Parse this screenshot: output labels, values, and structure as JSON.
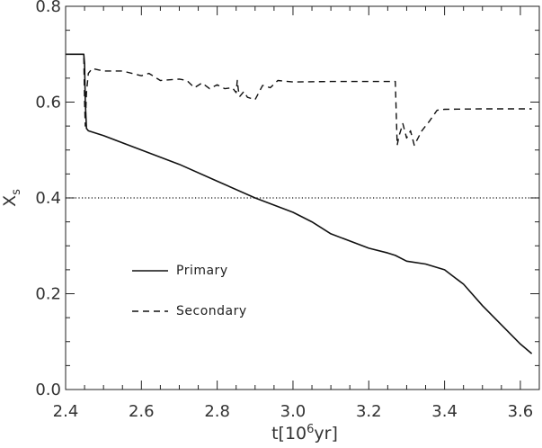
{
  "chart_data": {
    "type": "line",
    "xlabel_prefix": "t[10",
    "xlabel_sup": "6",
    "xlabel_suffix": "yr]",
    "ylabel_main": "X",
    "ylabel_sub": "s",
    "xlim": [
      2.4,
      3.65
    ],
    "ylim": [
      0.0,
      0.8
    ],
    "xticks": [
      2.4,
      2.6,
      2.8,
      3.0,
      3.2,
      3.4,
      3.6
    ],
    "xtick_labels": [
      "2.4",
      "2.6",
      "2.8",
      "3.0",
      "3.2",
      "3.4",
      "3.6"
    ],
    "yticks": [
      0.0,
      0.2,
      0.4,
      0.6,
      0.8
    ],
    "ytick_labels": [
      "0.0",
      "0.2",
      "0.4",
      "0.6",
      "0.8"
    ],
    "grid": false,
    "legend_position": "lower-left",
    "reference_line": {
      "y": 0.4,
      "style": "dotted"
    },
    "series": [
      {
        "name": "Primary",
        "style": "solid",
        "x": [
          2.4,
          2.44,
          2.448,
          2.45,
          2.452,
          2.455,
          2.46,
          2.5,
          2.6,
          2.7,
          2.8,
          2.9,
          3.0,
          3.05,
          3.1,
          3.2,
          3.25,
          3.27,
          3.3,
          3.35,
          3.4,
          3.45,
          3.5,
          3.55,
          3.6,
          3.63
        ],
        "y": [
          0.7,
          0.7,
          0.7,
          0.68,
          0.6,
          0.545,
          0.54,
          0.53,
          0.5,
          0.47,
          0.435,
          0.4,
          0.37,
          0.35,
          0.325,
          0.295,
          0.285,
          0.28,
          0.268,
          0.262,
          0.25,
          0.22,
          0.175,
          0.135,
          0.095,
          0.075
        ]
      },
      {
        "name": "Secondary",
        "style": "dashed",
        "x": [
          2.4,
          2.44,
          2.448,
          2.45,
          2.452,
          2.455,
          2.46,
          2.47,
          2.5,
          2.55,
          2.6,
          2.62,
          2.65,
          2.7,
          2.72,
          2.74,
          2.76,
          2.78,
          2.8,
          2.82,
          2.84,
          2.85,
          2.853,
          2.856,
          2.86,
          2.87,
          2.88,
          2.9,
          2.92,
          2.94,
          2.96,
          3.0,
          3.1,
          3.2,
          3.27,
          3.275,
          3.28,
          3.29,
          3.3,
          3.31,
          3.32,
          3.33,
          3.34,
          3.36,
          3.38,
          3.4,
          3.5,
          3.6,
          3.63
        ],
        "y": [
          0.7,
          0.7,
          0.7,
          0.6,
          0.55,
          0.62,
          0.66,
          0.67,
          0.665,
          0.665,
          0.655,
          0.66,
          0.645,
          0.648,
          0.645,
          0.63,
          0.64,
          0.628,
          0.636,
          0.628,
          0.63,
          0.62,
          0.645,
          0.625,
          0.612,
          0.622,
          0.61,
          0.605,
          0.635,
          0.63,
          0.645,
          0.642,
          0.643,
          0.643,
          0.643,
          0.51,
          0.53,
          0.555,
          0.525,
          0.54,
          0.51,
          0.525,
          0.54,
          0.56,
          0.583,
          0.585,
          0.586,
          0.586,
          0.586
        ]
      }
    ]
  }
}
